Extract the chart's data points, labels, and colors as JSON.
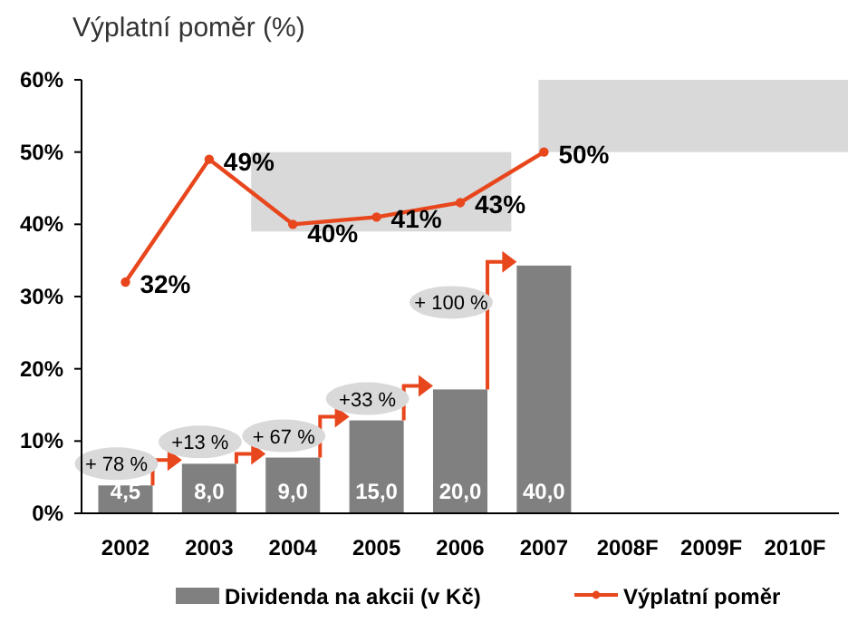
{
  "chart_data": {
    "type": "bar",
    "title": "Výplatní poměr (%)",
    "categories": [
      "2002",
      "2003",
      "2004",
      "2005",
      "2006",
      "2007",
      "2008F",
      "2009F",
      "2010F"
    ],
    "series": [
      {
        "name": "Dividenda na akcii (v Kč)",
        "axis": "y2",
        "color": "#808080",
        "values": [
          4.5,
          8,
          9,
          15,
          20,
          40,
          null,
          null,
          null
        ],
        "value_labels": [
          "4,5",
          "8,0",
          "9,0",
          "15,0",
          "20,0",
          "40,0",
          null,
          null,
          null
        ]
      },
      {
        "name": "Výplatní poměr",
        "type": "line",
        "color": "#e8461c",
        "values": [
          32,
          49,
          40,
          41,
          43,
          50,
          null,
          null,
          null
        ],
        "value_labels": [
          "32%",
          "49%",
          "40%",
          "41%",
          "43%",
          "50%",
          null,
          null,
          null
        ]
      }
    ],
    "ylim": [
      0,
      60
    ],
    "yticks": [
      {
        "value": 0,
        "label": "0%"
      },
      {
        "value": 10,
        "label": "10%"
      },
      {
        "value": 20,
        "label": "20%"
      },
      {
        "value": 30,
        "label": "30%"
      },
      {
        "value": 40,
        "label": "40%"
      },
      {
        "value": 50,
        "label": "50%"
      },
      {
        "value": 60,
        "label": "60%"
      }
    ],
    "y2lim": [
      0,
      70
    ],
    "marker": "circle",
    "legend": "bottom",
    "grid": false,
    "bands": [
      {
        "axis": "y",
        "from": 39,
        "to": 50,
        "color": "#d9d9d9"
      },
      {
        "axis": "y",
        "from": 50,
        "to": 60,
        "color": "#d9d9d9"
      }
    ],
    "annotations": [
      "+ 78 %",
      "+13  %",
      "+ 67 %",
      "+33 %",
      "+ 100 %"
    ]
  }
}
